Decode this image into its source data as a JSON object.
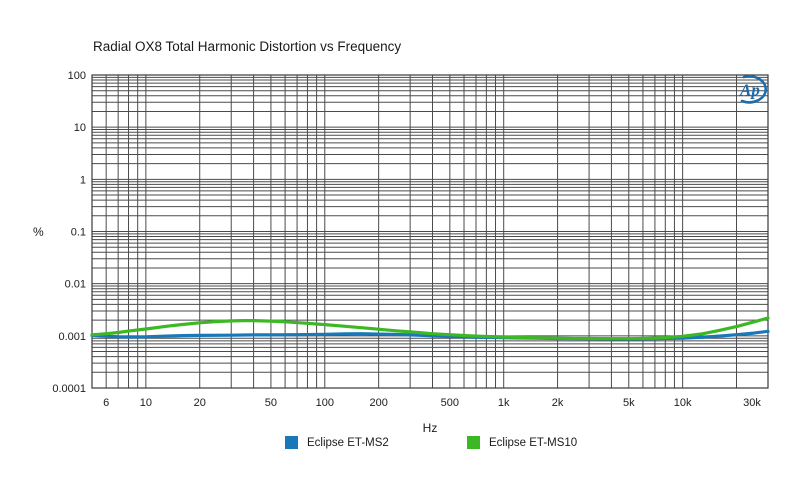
{
  "chart": {
    "title": "Radial OX8 Total Harmonic Distortion vs Frequency",
    "ylabel": "%",
    "xlabel": "Hz",
    "logo_text": "Ap",
    "logo_color": "#1a6cad",
    "grid_color": "#4b4b4d",
    "border_color": "#3a3a3c",
    "tick_text_color": "#1c1c1c"
  },
  "chart_data": {
    "type": "line",
    "title": "Radial OX8 Total Harmonic Distortion vs Frequency",
    "xlabel": "Hz",
    "ylabel": "%",
    "x_scale": "log",
    "y_scale": "log",
    "xlim": [
      5,
      30000
    ],
    "ylim": [
      0.0001,
      100
    ],
    "grid": true,
    "legend_position": "bottom",
    "x_ticks": [
      {
        "value": 6,
        "label": "6"
      },
      {
        "value": 10,
        "label": "10"
      },
      {
        "value": 20,
        "label": "20"
      },
      {
        "value": 50,
        "label": "50"
      },
      {
        "value": 100,
        "label": "100"
      },
      {
        "value": 200,
        "label": "200"
      },
      {
        "value": 500,
        "label": "500"
      },
      {
        "value": 1000,
        "label": "1k"
      },
      {
        "value": 2000,
        "label": "2k"
      },
      {
        "value": 5000,
        "label": "5k"
      },
      {
        "value": 10000,
        "label": "10k"
      },
      {
        "value": 30000,
        "label": "30k"
      }
    ],
    "y_ticks": [
      {
        "value": 100,
        "label": "100"
      },
      {
        "value": 10,
        "label": "10"
      },
      {
        "value": 1,
        "label": "1"
      },
      {
        "value": 0.1,
        "label": "0.1"
      },
      {
        "value": 0.01,
        "label": "0.01"
      },
      {
        "value": 0.001,
        "label": "0.001"
      },
      {
        "value": 0.0001,
        "label": "0.0001"
      }
    ],
    "series": [
      {
        "name": "Eclipse ET-MS2",
        "color": "#1878b8",
        "points": [
          [
            5,
            0.00102
          ],
          [
            6,
            0.00099
          ],
          [
            7,
            0.00096
          ],
          [
            8,
            0.00095
          ],
          [
            10,
            0.00096
          ],
          [
            13,
            0.00099
          ],
          [
            16,
            0.00101
          ],
          [
            20,
            0.00102
          ],
          [
            30,
            0.00103
          ],
          [
            40,
            0.00104
          ],
          [
            50,
            0.00104
          ],
          [
            70,
            0.00105
          ],
          [
            100,
            0.00107
          ],
          [
            130,
            0.00109
          ],
          [
            160,
            0.0011
          ],
          [
            200,
            0.00108
          ],
          [
            250,
            0.00106
          ],
          [
            300,
            0.00104
          ],
          [
            400,
            0.001
          ],
          [
            500,
            0.00097
          ],
          [
            700,
            0.00094
          ],
          [
            1000,
            0.00092
          ],
          [
            1500,
            0.0009
          ],
          [
            2000,
            0.00089
          ],
          [
            3000,
            0.00088
          ],
          [
            5000,
            0.00087
          ],
          [
            7000,
            0.00088
          ],
          [
            10000,
            0.0009
          ],
          [
            13000,
            0.00094
          ],
          [
            16000,
            0.00099
          ],
          [
            20000,
            0.00105
          ],
          [
            25000,
            0.00113
          ],
          [
            30000,
            0.00122
          ]
        ]
      },
      {
        "name": "Eclipse ET-MS10",
        "color": "#3cb824",
        "points": [
          [
            5,
            0.00104
          ],
          [
            6,
            0.0011
          ],
          [
            7,
            0.00116
          ],
          [
            8,
            0.00123
          ],
          [
            10,
            0.00135
          ],
          [
            13,
            0.00152
          ],
          [
            16,
            0.00165
          ],
          [
            20,
            0.00178
          ],
          [
            25,
            0.00188
          ],
          [
            30,
            0.00193
          ],
          [
            35,
            0.00196
          ],
          [
            40,
            0.00196
          ],
          [
            50,
            0.00192
          ],
          [
            60,
            0.00186
          ],
          [
            80,
            0.00174
          ],
          [
            100,
            0.00164
          ],
          [
            130,
            0.00152
          ],
          [
            160,
            0.00143
          ],
          [
            200,
            0.00134
          ],
          [
            250,
            0.00125
          ],
          [
            300,
            0.00119
          ],
          [
            400,
            0.0011
          ],
          [
            500,
            0.00105
          ],
          [
            650,
            0.001
          ],
          [
            800,
            0.00097
          ],
          [
            1000,
            0.00095
          ],
          [
            1300,
            0.00093
          ],
          [
            1600,
            0.00091
          ],
          [
            2000,
            0.0009
          ],
          [
            2500,
            0.00089
          ],
          [
            3000,
            0.00089
          ],
          [
            4000,
            0.00088
          ],
          [
            5000,
            0.00088
          ],
          [
            6000,
            0.00089
          ],
          [
            8000,
            0.00092
          ],
          [
            10000,
            0.00098
          ],
          [
            13000,
            0.0011
          ],
          [
            16000,
            0.00127
          ],
          [
            20000,
            0.0015
          ],
          [
            25000,
            0.00185
          ],
          [
            30000,
            0.0022
          ]
        ]
      }
    ]
  }
}
